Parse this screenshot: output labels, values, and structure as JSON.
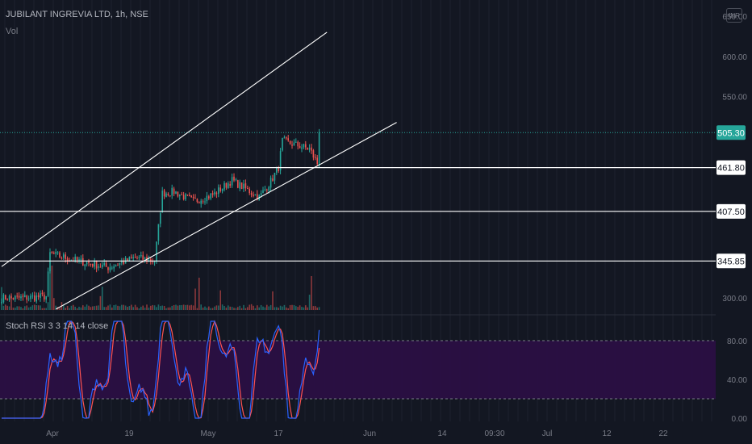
{
  "header": {
    "symbol_line": "JUBILANT INGREVIA LTD, 1h, NSE",
    "volume_label": "Vol",
    "currency_badge": "INR"
  },
  "stoch_panel": {
    "title": "Stoch RSI 3 3 14 14 close"
  },
  "colors": {
    "background": "#131722",
    "grid": "#1e222d",
    "up": "#26a69a",
    "down": "#ef5350",
    "trendline": "#ffffff",
    "k_line": "#2962ff",
    "d_line": "#ff5252",
    "band_fill": "#2a0f43"
  },
  "chart_data": {
    "type": "candlestick",
    "symbol": "JUBILANT INGREVIA LTD",
    "interval": "1h",
    "exchange": "NSE",
    "price_axis": {
      "range": [
        285,
        670
      ],
      "ticks": [
        "650.00",
        "600.00",
        "550.00",
        "300.00"
      ],
      "tick_values": [
        650,
        600,
        550,
        300
      ]
    },
    "time_axis": {
      "labels": [
        "Apr",
        "19",
        "May",
        "17",
        "Jun",
        "14",
        "09:30",
        "Jul",
        "12",
        "22"
      ]
    },
    "last_price": {
      "value": 505.3,
      "label": "505.30"
    },
    "horizontal_levels": [
      {
        "value": 461.8,
        "label": "461.80"
      },
      {
        "value": 407.5,
        "label": "407.50"
      },
      {
        "value": 345.85,
        "label": "345.85"
      }
    ],
    "trendlines": [
      {
        "name": "upper-channel",
        "from": {
          "bar": 0,
          "price": 339
        },
        "to": {
          "bar": 168,
          "price": 630
        }
      },
      {
        "name": "lower-channel",
        "from": {
          "bar": 28,
          "price": 286
        },
        "to": {
          "bar": 204,
          "price": 518
        }
      }
    ],
    "price_segments": [
      {
        "bars": 12,
        "start": 300,
        "end": 300
      },
      {
        "bars": 12,
        "start": 300,
        "end": 302
      },
      {
        "bars": 2,
        "start": 302,
        "end": 355
      },
      {
        "bars": 16,
        "start": 355,
        "end": 345
      },
      {
        "bars": 14,
        "start": 345,
        "end": 338
      },
      {
        "bars": 14,
        "start": 338,
        "end": 350
      },
      {
        "bars": 10,
        "start": 350,
        "end": 346
      },
      {
        "bars": 4,
        "start": 346,
        "end": 430
      },
      {
        "bars": 6,
        "start": 430,
        "end": 432
      },
      {
        "bars": 10,
        "start": 432,
        "end": 420
      },
      {
        "bars": 10,
        "start": 420,
        "end": 428
      },
      {
        "bars": 10,
        "start": 428,
        "end": 446
      },
      {
        "bars": 14,
        "start": 446,
        "end": 425
      },
      {
        "bars": 6,
        "start": 425,
        "end": 445
      },
      {
        "bars": 4,
        "start": 445,
        "end": 462
      },
      {
        "bars": 2,
        "start": 462,
        "end": 495
      },
      {
        "bars": 14,
        "start": 495,
        "end": 485
      },
      {
        "bars": 4,
        "start": 485,
        "end": 467
      },
      {
        "bars": 1,
        "start": 467,
        "end": 505.3
      }
    ],
    "stoch_rsi": {
      "k": "Stoch RSI K",
      "d": "Stoch RSI D",
      "range": [
        0,
        100
      ],
      "band_upper": 80,
      "band_lower": 20,
      "ticks": [
        "80.00",
        "40.00",
        "0.00"
      ],
      "tick_values": [
        80,
        40,
        0
      ]
    }
  }
}
